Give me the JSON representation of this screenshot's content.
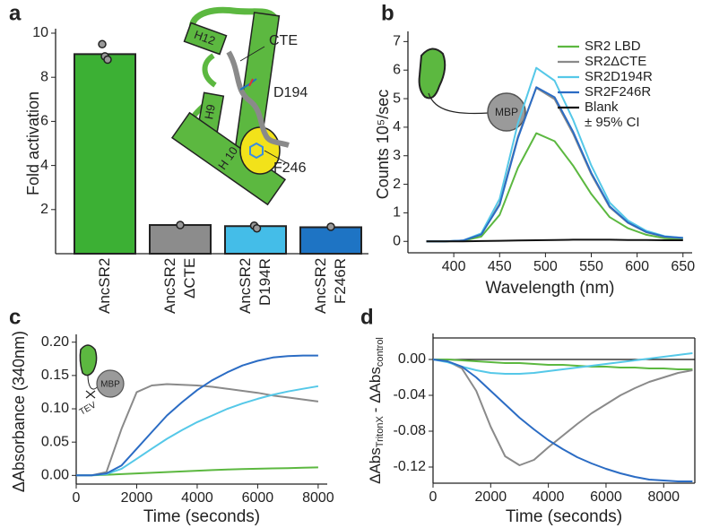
{
  "chart_data": [
    {
      "type": "bar",
      "panel": "a",
      "ylabel": "Fold activation",
      "categories": [
        "AncSR2",
        "AncSR2\nΔCTE",
        "AncSR2\nD194R",
        "AncSR2\nF246R"
      ],
      "values": [
        9.05,
        1.3,
        1.25,
        1.2
      ],
      "colors": [
        "#3cb034",
        "#8c8c8c",
        "#44bde8",
        "#1e74c4"
      ],
      "points": [
        [
          9.5,
          8.95,
          8.8
        ],
        [
          1.3
        ],
        [
          1.27,
          1.15
        ],
        [
          1.22
        ]
      ],
      "ylim": [
        0,
        10
      ],
      "yticks": [
        2,
        4,
        6,
        8,
        10
      ],
      "annotations": [
        "H12",
        "CTE",
        "D194",
        "H9",
        "H 10",
        "F246"
      ]
    },
    {
      "type": "line",
      "panel": "b",
      "ylabel": "Counts 10⁵/sec",
      "xlabel": "Wavelength (nm)",
      "x": [
        370,
        390,
        410,
        430,
        450,
        470,
        490,
        510,
        530,
        550,
        570,
        590,
        610,
        630,
        650
      ],
      "series": [
        {
          "name": "SR2 LBD",
          "color": "#5cb840",
          "values": [
            0,
            0,
            0.02,
            0.17,
            0.93,
            2.58,
            3.79,
            3.51,
            2.66,
            1.66,
            0.85,
            0.46,
            0.23,
            0.11,
            0.08
          ]
        },
        {
          "name": "SR2ΔCTE",
          "color": "#8a8a8a",
          "values": [
            0,
            0,
            0.03,
            0.25,
            1.32,
            3.67,
            5.38,
            4.98,
            3.78,
            2.35,
            1.2,
            0.65,
            0.32,
            0.16,
            0.11
          ]
        },
        {
          "name": "SR2D194R",
          "color": "#55c8e8",
          "values": [
            0,
            0,
            0.03,
            0.28,
            1.49,
            4.14,
            6.08,
            5.63,
            4.27,
            2.66,
            1.36,
            0.73,
            0.37,
            0.18,
            0.12
          ]
        },
        {
          "name": "SR2F246R",
          "color": "#2b6cc4",
          "values": [
            0,
            0,
            0.03,
            0.24,
            1.28,
            3.62,
            5.4,
            5.05,
            3.85,
            2.4,
            1.23,
            0.66,
            0.33,
            0.17,
            0.12
          ]
        },
        {
          "name": "Blank",
          "color": "#111111",
          "values": [
            0,
            0,
            0,
            0.01,
            0.02,
            0.03,
            0.04,
            0.05,
            0.06,
            0.06,
            0.06,
            0.05,
            0.05,
            0.04,
            0.04
          ]
        }
      ],
      "legend_note": "± 95% CI",
      "legend": "upper right",
      "inset_label": "MBP",
      "xlim": [
        350,
        660
      ],
      "xticks": [
        400,
        450,
        500,
        550,
        600,
        650
      ],
      "ylim": [
        -0.4,
        7.2
      ],
      "yticks": [
        0,
        1,
        2,
        3,
        4,
        5,
        6,
        7
      ]
    },
    {
      "type": "line",
      "panel": "c",
      "ylabel": "ΔAbsorbance (340nm)",
      "xlabel": "Time (seconds)",
      "x": [
        0,
        500,
        1000,
        1500,
        2000,
        2500,
        3000,
        3500,
        4000,
        4500,
        5000,
        5500,
        6000,
        6500,
        7000,
        7500,
        8000
      ],
      "series": [
        {
          "color": "#5cb840",
          "values": [
            0,
            0,
            0.001,
            0.002,
            0.003,
            0.004,
            0.005,
            0.006,
            0.007,
            0.008,
            0.009,
            0.0095,
            0.01,
            0.0105,
            0.011,
            0.0115,
            0.012
          ]
        },
        {
          "color": "#8a8a8a",
          "values": [
            0,
            0,
            0.005,
            0.07,
            0.125,
            0.135,
            0.137,
            0.136,
            0.135,
            0.133,
            0.13,
            0.127,
            0.124,
            0.12,
            0.117,
            0.114,
            0.111
          ]
        },
        {
          "color": "#55c8e8",
          "values": [
            0,
            0,
            0.002,
            0.01,
            0.025,
            0.04,
            0.055,
            0.068,
            0.08,
            0.09,
            0.1,
            0.108,
            0.115,
            0.121,
            0.126,
            0.13,
            0.134
          ]
        },
        {
          "color": "#2b6cc4",
          "values": [
            0,
            0,
            0.003,
            0.015,
            0.04,
            0.065,
            0.09,
            0.11,
            0.128,
            0.143,
            0.155,
            0.165,
            0.172,
            0.177,
            0.179,
            0.18,
            0.18
          ]
        }
      ],
      "inset_labels": [
        "MBP",
        "TEV"
      ],
      "xlim": [
        0,
        8300
      ],
      "xticks": [
        0,
        2000,
        4000,
        6000,
        8000
      ],
      "ylim": [
        -0.013,
        0.205
      ],
      "yticks": [
        {
          "value": 0,
          "label": "0.00"
        },
        {
          "value": 0.05,
          "label": "0.05"
        },
        {
          "value": 0.1,
          "label": "0.10"
        },
        {
          "value": 0.15,
          "label": "0.15"
        },
        {
          "value": 0.2,
          "label": "0.20"
        }
      ]
    },
    {
      "type": "line",
      "panel": "d",
      "ylabel_parts": [
        "ΔAbs",
        "TritonX",
        "- ΔAbs",
        "control"
      ],
      "xlabel": "Time (seconds)",
      "x": [
        0,
        500,
        1000,
        1500,
        2000,
        2500,
        3000,
        3500,
        4000,
        4500,
        5000,
        5500,
        6000,
        6500,
        7000,
        7500,
        8000,
        8500,
        9000
      ],
      "series": [
        {
          "color": "#5cb840",
          "values": [
            0,
            0,
            -0.001,
            -0.002,
            -0.003,
            -0.004,
            -0.004,
            -0.005,
            -0.006,
            -0.006,
            -0.007,
            -0.008,
            -0.008,
            -0.009,
            -0.009,
            -0.01,
            -0.01,
            -0.011,
            -0.011
          ]
        },
        {
          "color": "#8a8a8a",
          "values": [
            0,
            -0.002,
            -0.01,
            -0.035,
            -0.075,
            -0.108,
            -0.118,
            -0.112,
            -0.098,
            -0.085,
            -0.072,
            -0.06,
            -0.05,
            -0.04,
            -0.032,
            -0.025,
            -0.02,
            -0.015,
            -0.012
          ]
        },
        {
          "color": "#55c8e8",
          "values": [
            0,
            -0.003,
            -0.008,
            -0.012,
            -0.015,
            -0.016,
            -0.016,
            -0.015,
            -0.013,
            -0.011,
            -0.009,
            -0.007,
            -0.005,
            -0.003,
            -0.001,
            0.001,
            0.003,
            0.005,
            0.007
          ]
        },
        {
          "color": "#2b6cc4",
          "values": [
            0,
            -0.002,
            -0.008,
            -0.02,
            -0.035,
            -0.05,
            -0.065,
            -0.078,
            -0.09,
            -0.1,
            -0.109,
            -0.116,
            -0.122,
            -0.127,
            -0.131,
            -0.134,
            -0.135,
            -0.136,
            -0.136
          ]
        }
      ],
      "reference_line": 0,
      "frame": true,
      "xlim": [
        0,
        9080
      ],
      "xticks": [
        0,
        2000,
        4000,
        6000,
        8000
      ],
      "ylim": [
        -0.138,
        0.024
      ],
      "yticks": [
        {
          "value": 0,
          "label": "0.00"
        },
        {
          "value": -0.04,
          "label": "-0.04"
        },
        {
          "value": -0.08,
          "label": "-0.08"
        },
        {
          "value": -0.12,
          "label": "-0.12"
        }
      ]
    }
  ]
}
